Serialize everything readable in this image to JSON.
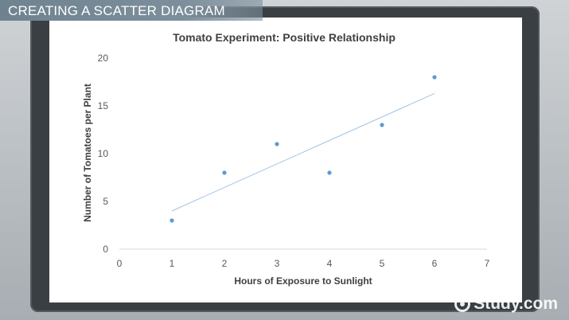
{
  "banner": {
    "title": "CREATING A SCATTER DIAGRAM"
  },
  "watermark": {
    "text": "Study.com"
  },
  "colors": {
    "point": "#5b9bd5",
    "trendline": "#9dc3e6",
    "axis": "#d9d9d9",
    "text": "#595959",
    "title": "#404040"
  },
  "chart_data": {
    "type": "scatter",
    "title": "Tomato Experiment: Positive Relationship",
    "xlabel": "Hours of Exposure to Sunlight",
    "ylabel": "Number of Tomatoes per Plant",
    "xlim": [
      0,
      7
    ],
    "ylim": [
      0,
      20
    ],
    "xticks": [
      0,
      1,
      2,
      3,
      4,
      5,
      6,
      7
    ],
    "yticks": [
      0,
      5,
      10,
      15,
      20
    ],
    "grid": false,
    "legend": "none",
    "series": [
      {
        "x": [
          1,
          2,
          3,
          4,
          5,
          6
        ],
        "y": [
          3,
          8,
          11,
          8,
          13,
          18
        ]
      }
    ],
    "trendline": {
      "type": "linear",
      "x": [
        1,
        6
      ],
      "y": [
        4,
        16.3
      ]
    }
  }
}
